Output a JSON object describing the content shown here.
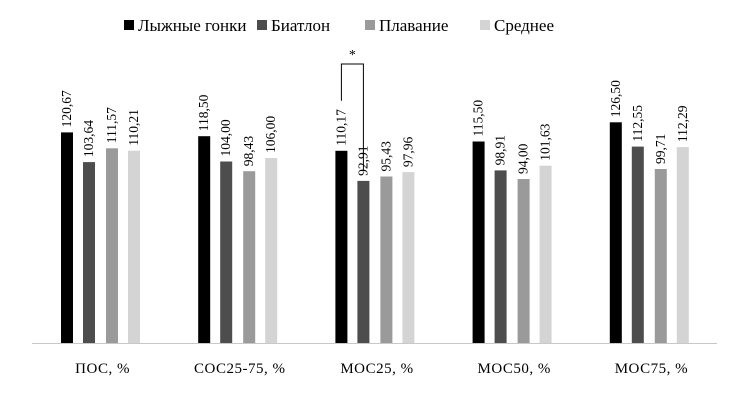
{
  "chart_data": {
    "type": "bar",
    "title": "",
    "xlabel": "",
    "ylabel": "",
    "ylim": [
      0,
      135
    ],
    "grid": false,
    "legend_position": "top",
    "categories": [
      "ПОС, %",
      "СОС25-75, %",
      "МОС25, %",
      "МОС50, %",
      "МОС75, %"
    ],
    "series": [
      {
        "name": "Лыжные гонки",
        "color": "#000000",
        "values": [
          120.67,
          118.5,
          110.17,
          115.5,
          126.5
        ],
        "labels": [
          "120,67",
          "118,50",
          "110,17",
          "115,50",
          "126,50"
        ]
      },
      {
        "name": "Биатлон",
        "color": "#4d4d4d",
        "values": [
          103.64,
          104.0,
          92.91,
          98.91,
          112.55
        ],
        "labels": [
          "103,64",
          "104,00",
          "92,91",
          "98,91",
          "112,55"
        ]
      },
      {
        "name": "Плавание",
        "color": "#9a9a9a",
        "values": [
          111.57,
          98.43,
          95.43,
          94.0,
          99.71
        ],
        "labels": [
          "111,57",
          "98,43",
          "95,43",
          "94,00",
          "99,71"
        ]
      },
      {
        "name": "Среднее",
        "color": "#d4d4d4",
        "values": [
          110.21,
          106.0,
          97.96,
          101.63,
          112.29
        ],
        "labels": [
          "110,21",
          "106,00",
          "97,96",
          "101,63",
          "112,29"
        ]
      }
    ],
    "annotations": [
      {
        "text": "*",
        "category_index": 2,
        "from_series": 0,
        "to_series": 1
      }
    ]
  }
}
